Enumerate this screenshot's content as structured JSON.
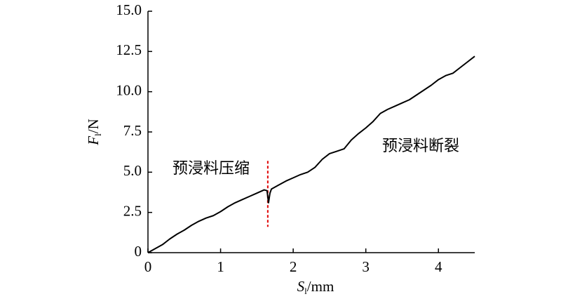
{
  "chart_data": {
    "type": "line",
    "x_label": {
      "main": "S",
      "sub": "l",
      "unit": "/mm"
    },
    "y_label": {
      "main": "F",
      "sub": "l",
      "unit": "/N"
    },
    "annotations": [
      "预浸料压缩",
      "预浸料断裂"
    ],
    "reference_line": {
      "x": 1.65,
      "y": [
        1.6,
        5.7
      ],
      "color": "#e00000"
    },
    "xlim": [
      0,
      4.5
    ],
    "xticks": [
      0,
      1,
      2,
      3,
      4
    ],
    "ylim": [
      0,
      15
    ],
    "yticks": [
      0,
      2.5,
      {
        "value": 5,
        "label": "5.0"
      },
      7.5,
      {
        "value": 10,
        "label": "10.0"
      },
      12.5,
      {
        "value": 15,
        "label": "15.0"
      }
    ],
    "x": [
      0,
      0.1,
      0.2,
      0.3,
      0.4,
      0.5,
      0.6,
      0.7,
      0.8,
      0.9,
      1.0,
      1.1,
      1.2,
      1.3,
      1.4,
      1.5,
      1.6,
      1.64,
      1.66,
      1.68,
      1.7,
      1.8,
      1.9,
      2.0,
      2.1,
      2.2,
      2.3,
      2.4,
      2.5,
      2.6,
      2.7,
      2.8,
      2.9,
      3.0,
      3.1,
      3.2,
      3.3,
      3.4,
      3.5,
      3.6,
      3.7,
      3.8,
      3.9,
      4.0,
      4.1,
      4.2,
      4.3,
      4.4,
      4.5
    ],
    "series": [
      {
        "color": "#000000",
        "values": [
          0,
          0.25,
          0.5,
          0.85,
          1.15,
          1.4,
          1.7,
          1.95,
          2.15,
          2.3,
          2.55,
          2.85,
          3.1,
          3.3,
          3.5,
          3.7,
          3.9,
          3.85,
          3.1,
          3.7,
          3.95,
          4.2,
          4.45,
          4.65,
          4.85,
          5.0,
          5.3,
          5.8,
          6.15,
          6.3,
          6.45,
          7.0,
          7.4,
          7.75,
          8.15,
          8.65,
          8.9,
          9.1,
          9.3,
          9.5,
          9.8,
          10.1,
          10.4,
          10.75,
          11.0,
          11.15,
          11.5,
          11.85,
          12.2
        ]
      }
    ]
  }
}
